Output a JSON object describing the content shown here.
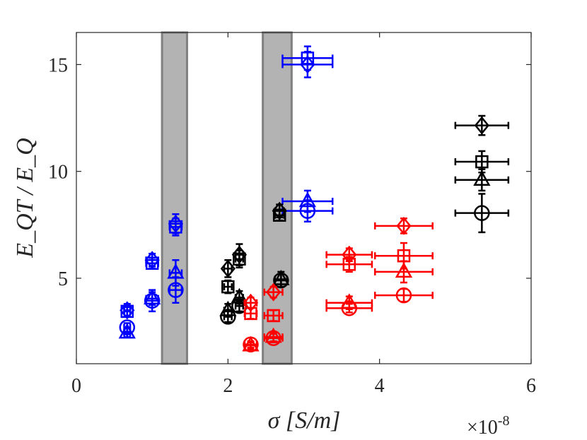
{
  "chart_data": {
    "type": "scatter",
    "title": "",
    "xlabel": "σ [S/m]",
    "ylabel": "E_QT / E_Q",
    "x_multiplier": "×10",
    "x_multiplier_exp": "-8",
    "xlim": [
      0,
      6
    ],
    "ylim": [
      1,
      16.5
    ],
    "xticks": [
      0,
      2,
      4,
      6
    ],
    "yticks": [
      5,
      10,
      15
    ],
    "xtick_labels": [
      "0",
      "2",
      "4",
      "6"
    ],
    "ytick_labels": [
      "5",
      "10",
      "15"
    ],
    "shaded_bands": [
      {
        "x_start": 1.13,
        "x_end": 1.46
      },
      {
        "x_start": 2.46,
        "x_end": 2.84
      }
    ],
    "series": [
      {
        "name": "blue",
        "color": "#0000ff",
        "points": [
          {
            "x": 0.67,
            "y": 3.5,
            "marker": "diamond",
            "xerr": 0.04,
            "yerr": 0.3
          },
          {
            "x": 0.67,
            "y": 3.45,
            "marker": "square",
            "xerr": 0.04,
            "yerr": 0.2
          },
          {
            "x": 0.67,
            "y": 2.45,
            "marker": "triangle",
            "xerr": 0.04,
            "yerr": 0.2
          },
          {
            "x": 0.67,
            "y": 2.7,
            "marker": "circle",
            "xerr": 0.04,
            "yerr": 0.2
          },
          {
            "x": 1.0,
            "y": 5.85,
            "marker": "diamond",
            "xerr": 0.08,
            "yerr": 0.3
          },
          {
            "x": 1.0,
            "y": 5.7,
            "marker": "square",
            "xerr": 0.08,
            "yerr": 0.25
          },
          {
            "x": 1.0,
            "y": 4.05,
            "marker": "triangle",
            "xerr": 0.08,
            "yerr": 0.3
          },
          {
            "x": 1.0,
            "y": 3.95,
            "marker": "circle",
            "xerr": 0.08,
            "yerr": 0.5
          },
          {
            "x": 1.31,
            "y": 7.55,
            "marker": "diamond",
            "xerr": 0.08,
            "yerr": 0.45
          },
          {
            "x": 1.31,
            "y": 7.4,
            "marker": "square",
            "xerr": 0.08,
            "yerr": 0.4
          },
          {
            "x": 1.31,
            "y": 5.25,
            "marker": "triangle",
            "xerr": 0.08,
            "yerr": 0.6
          },
          {
            "x": 1.31,
            "y": 4.45,
            "marker": "circle",
            "xerr": 0.08,
            "yerr": 0.6
          },
          {
            "x": 3.05,
            "y": 15.0,
            "marker": "diamond",
            "xerr": 0.33,
            "yerr": 0.6
          },
          {
            "x": 3.05,
            "y": 15.3,
            "marker": "square",
            "xerr": 0.33,
            "yerr": 0.55
          },
          {
            "x": 3.05,
            "y": 8.6,
            "marker": "triangle",
            "xerr": 0.33,
            "yerr": 0.5
          },
          {
            "x": 3.05,
            "y": 8.15,
            "marker": "circle",
            "xerr": 0.33,
            "yerr": 0.5
          }
        ]
      },
      {
        "name": "black",
        "color": "#000000",
        "points": [
          {
            "x": 2.0,
            "y": 5.45,
            "marker": "diamond",
            "xerr": 0.05,
            "yerr": 0.4
          },
          {
            "x": 2.0,
            "y": 4.6,
            "marker": "square",
            "xerr": 0.05,
            "yerr": 0.3
          },
          {
            "x": 2.0,
            "y": 3.5,
            "marker": "triangle",
            "xerr": 0.05,
            "yerr": 0.3
          },
          {
            "x": 2.0,
            "y": 3.2,
            "marker": "circle",
            "xerr": 0.05,
            "yerr": 0.25
          },
          {
            "x": 2.15,
            "y": 6.1,
            "marker": "diamond",
            "xerr": 0.05,
            "yerr": 0.5
          },
          {
            "x": 2.15,
            "y": 5.9,
            "marker": "square",
            "xerr": 0.05,
            "yerr": 0.4
          },
          {
            "x": 2.15,
            "y": 4.1,
            "marker": "triangle",
            "xerr": 0.05,
            "yerr": 0.3
          },
          {
            "x": 2.15,
            "y": 3.7,
            "marker": "circle",
            "xerr": 0.05,
            "yerr": 0.25
          },
          {
            "x": 2.68,
            "y": 8.15,
            "marker": "diamond",
            "xerr": 0.06,
            "yerr": 0.3
          },
          {
            "x": 2.68,
            "y": 7.95,
            "marker": "square",
            "xerr": 0.06,
            "yerr": 0.25
          },
          {
            "x": 2.7,
            "y": 4.95,
            "marker": "triangle",
            "xerr": 0.08,
            "yerr": 0.35
          },
          {
            "x": 2.7,
            "y": 4.9,
            "marker": "circle",
            "xerr": 0.08,
            "yerr": 0.3
          },
          {
            "x": 5.35,
            "y": 12.15,
            "marker": "diamond",
            "xerr": 0.35,
            "yerr": 0.45
          },
          {
            "x": 5.35,
            "y": 10.45,
            "marker": "square",
            "xerr": 0.35,
            "yerr": 0.5
          },
          {
            "x": 5.35,
            "y": 9.6,
            "marker": "triangle",
            "xerr": 0.35,
            "yerr": 0.5
          },
          {
            "x": 5.35,
            "y": 8.05,
            "marker": "circle",
            "xerr": 0.35,
            "yerr": 0.9
          }
        ]
      },
      {
        "name": "red",
        "color": "#ff0000",
        "points": [
          {
            "x": 2.3,
            "y": 3.85,
            "marker": "diamond",
            "xerr": 0.08,
            "yerr": 0.25
          },
          {
            "x": 2.3,
            "y": 3.35,
            "marker": "square",
            "xerr": 0.08,
            "yerr": 0.25
          },
          {
            "x": 2.3,
            "y": 1.85,
            "marker": "triangle",
            "xerr": 0.08,
            "yerr": 0.15
          },
          {
            "x": 2.3,
            "y": 1.9,
            "marker": "circle",
            "xerr": 0.08,
            "yerr": 0.15
          },
          {
            "x": 2.6,
            "y": 4.35,
            "marker": "diamond",
            "xerr": 0.12,
            "yerr": 0.25
          },
          {
            "x": 2.6,
            "y": 3.25,
            "marker": "square",
            "xerr": 0.12,
            "yerr": 0.25
          },
          {
            "x": 2.6,
            "y": 2.25,
            "marker": "triangle",
            "xerr": 0.12,
            "yerr": 0.2
          },
          {
            "x": 2.6,
            "y": 2.2,
            "marker": "circle",
            "xerr": 0.12,
            "yerr": 0.2
          },
          {
            "x": 3.6,
            "y": 6.1,
            "marker": "diamond",
            "xerr": 0.3,
            "yerr": 0.3
          },
          {
            "x": 3.6,
            "y": 5.65,
            "marker": "square",
            "xerr": 0.3,
            "yerr": 0.35
          },
          {
            "x": 3.6,
            "y": 3.85,
            "marker": "triangle",
            "xerr": 0.3,
            "yerr": 0.3
          },
          {
            "x": 3.6,
            "y": 3.6,
            "marker": "circle",
            "xerr": 0.3,
            "yerr": 0.2
          },
          {
            "x": 4.32,
            "y": 7.45,
            "marker": "diamond",
            "xerr": 0.38,
            "yerr": 0.35
          },
          {
            "x": 4.32,
            "y": 6.05,
            "marker": "square",
            "xerr": 0.38,
            "yerr": 0.6
          },
          {
            "x": 4.32,
            "y": 5.3,
            "marker": "triangle",
            "xerr": 0.38,
            "yerr": 0.5
          },
          {
            "x": 4.32,
            "y": 4.2,
            "marker": "circle",
            "xerr": 0.38,
            "yerr": 0.3
          }
        ]
      }
    ]
  }
}
